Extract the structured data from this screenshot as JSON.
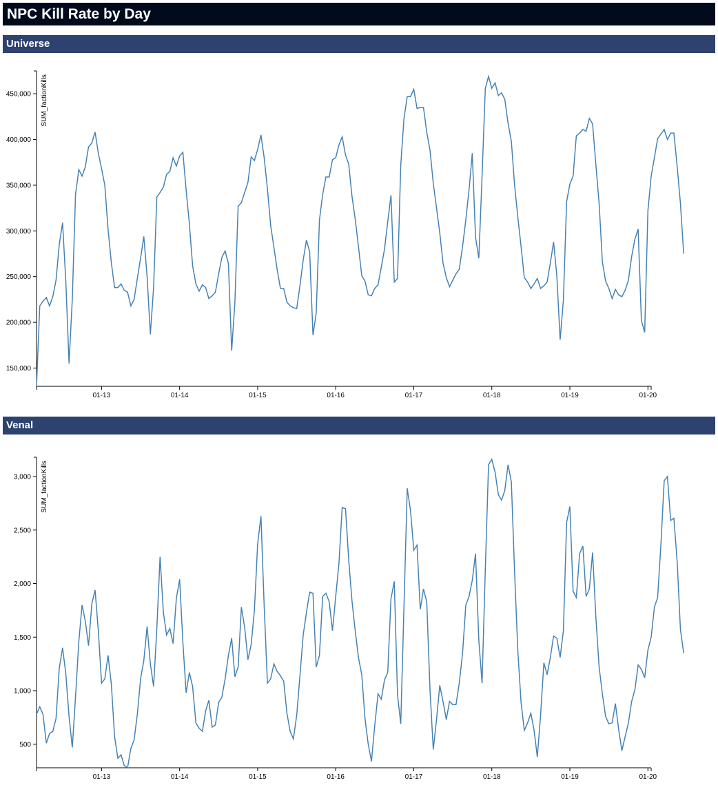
{
  "page": {
    "title": "NPC Kill Rate by Day"
  },
  "colors": {
    "title_bar": "#020b1c",
    "section_header": "#2d426f",
    "line": "#4682b4"
  },
  "chart_data": [
    {
      "type": "line",
      "section": "Universe",
      "ylabel": "SUM_factionKills",
      "xlabel": "",
      "x_ticks": [
        "01-13",
        "01-14",
        "01-15",
        "01-16",
        "01-17",
        "01-18",
        "01-19",
        "01-20"
      ],
      "y_ticks": [
        150000,
        200000,
        250000,
        300000,
        350000,
        400000,
        450000
      ],
      "y_tick_labels": [
        "150,000",
        "200,000",
        "250,000",
        "300,000",
        "350,000",
        "400,000",
        "450,000"
      ],
      "xlim": [
        "01-12 04:00",
        "01-20 01:00"
      ],
      "ylim": [
        130000,
        475000
      ],
      "grid": false,
      "series": [
        {
          "time_step_hours": 1,
          "values": [
            130000,
            218000,
            223000,
            227000,
            218000,
            228000,
            246000,
            285000,
            309000,
            245000,
            155000,
            225000,
            340000,
            367000,
            360000,
            370000,
            392000,
            396000,
            408000,
            385000,
            368000,
            350000,
            302000,
            265000,
            238000,
            238000,
            242000,
            235000,
            233000,
            218000,
            225000,
            248000,
            270000,
            294000,
            250000,
            187000,
            238000,
            337000,
            342000,
            348000,
            362000,
            365000,
            380000,
            371000,
            382000,
            386000,
            345000,
            308000,
            262000,
            242000,
            234000,
            241000,
            238000,
            226000,
            229000,
            233000,
            253000,
            271000,
            278000,
            264000,
            169000,
            222000,
            327000,
            331000,
            342000,
            353000,
            381000,
            377000,
            389000,
            405000,
            380000,
            346000,
            306000,
            282000,
            258000,
            237000,
            237000,
            222000,
            218000,
            216000,
            215000,
            240000,
            268000,
            290000,
            277000,
            186000,
            210000,
            312000,
            340000,
            359000,
            359000,
            378000,
            380000,
            394000,
            403000,
            383000,
            373000,
            338000,
            313000,
            283000,
            251000,
            245000,
            230000,
            229000,
            237000,
            241000,
            260000,
            280000,
            310000,
            339000,
            244000,
            248000,
            372000,
            423000,
            447000,
            447000,
            455000,
            434000,
            435000,
            435000,
            408000,
            388000,
            352000,
            325000,
            298000,
            265000,
            249000,
            239000,
            246000,
            253000,
            258000,
            283000,
            312000,
            345000,
            385000,
            293000,
            270000,
            360000,
            456000,
            469000,
            456000,
            462000,
            448000,
            451000,
            444000,
            418000,
            398000,
            350000,
            315000,
            283000,
            249000,
            244000,
            237000,
            242000,
            248000,
            237000,
            240000,
            244000,
            265000,
            288000,
            251000,
            181000,
            224000,
            332000,
            351000,
            360000,
            404000,
            407000,
            411000,
            409000,
            423000,
            417000,
            372000,
            330000,
            266000,
            245000,
            237000,
            226000,
            236000,
            230000,
            228000,
            235000,
            246000,
            272000,
            291000,
            302000,
            202000,
            189000,
            322000,
            360000,
            380000,
            401000,
            406000,
            411000,
            400000,
            407000,
            407000,
            370000,
            330000,
            275000
          ]
        }
      ]
    },
    {
      "type": "line",
      "section": "Venal",
      "ylabel": "SUM_factionKills",
      "xlabel": "",
      "x_ticks": [
        "01-13",
        "01-14",
        "01-15",
        "01-16",
        "01-17",
        "01-18",
        "01-19",
        "01-20"
      ],
      "y_ticks": [
        500,
        1000,
        1500,
        2000,
        2500,
        3000
      ],
      "y_tick_labels": [
        "500",
        "1,000",
        "1,500",
        "2,000",
        "2,500",
        "3,000"
      ],
      "xlim": [
        "01-12 04:00",
        "01-20 01:00"
      ],
      "ylim": [
        280,
        3180
      ],
      "grid": false,
      "series": [
        {
          "time_step_hours": 1,
          "values": [
            780,
            850,
            780,
            510,
            600,
            620,
            740,
            1210,
            1400,
            1160,
            760,
            470,
            940,
            1460,
            1800,
            1650,
            1420,
            1810,
            1940,
            1560,
            1070,
            1110,
            1330,
            1060,
            570,
            370,
            400,
            300,
            280,
            460,
            540,
            780,
            1110,
            1280,
            1600,
            1250,
            1040,
            1580,
            2250,
            1730,
            1520,
            1580,
            1440,
            1860,
            2040,
            1450,
            980,
            1170,
            1040,
            700,
            650,
            620,
            810,
            910,
            660,
            680,
            890,
            940,
            1110,
            1330,
            1490,
            1130,
            1220,
            1780,
            1590,
            1290,
            1430,
            1750,
            2370,
            2630,
            1790,
            1070,
            1110,
            1250,
            1180,
            1140,
            1090,
            790,
            620,
            550,
            770,
            1140,
            1520,
            1730,
            1920,
            1910,
            1220,
            1330,
            1880,
            1910,
            1830,
            1560,
            1880,
            2190,
            2710,
            2700,
            2220,
            1840,
            1560,
            1310,
            1150,
            740,
            500,
            340,
            670,
            970,
            920,
            1100,
            1170,
            1860,
            2020,
            960,
            690,
            1790,
            2890,
            2680,
            2310,
            2360,
            1760,
            1950,
            1830,
            1000,
            450,
            730,
            1050,
            900,
            730,
            900,
            870,
            870,
            1070,
            1350,
            1800,
            1880,
            2030,
            2280,
            1470,
            1070,
            2130,
            3110,
            3160,
            3040,
            2830,
            2780,
            2870,
            3110,
            2950,
            2110,
            1370,
            890,
            630,
            700,
            790,
            630,
            380,
            770,
            1260,
            1150,
            1310,
            1510,
            1490,
            1310,
            1560,
            2570,
            2720,
            1930,
            1870,
            2280,
            2350,
            1880,
            1950,
            2290,
            1680,
            1220,
            970,
            760,
            690,
            700,
            880,
            640,
            440,
            570,
            700,
            900,
            1010,
            1240,
            1200,
            1120,
            1380,
            1500,
            1780,
            1870,
            2370,
            2960,
            3000,
            2590,
            2610,
            2200,
            1570,
            1350
          ]
        }
      ]
    }
  ]
}
